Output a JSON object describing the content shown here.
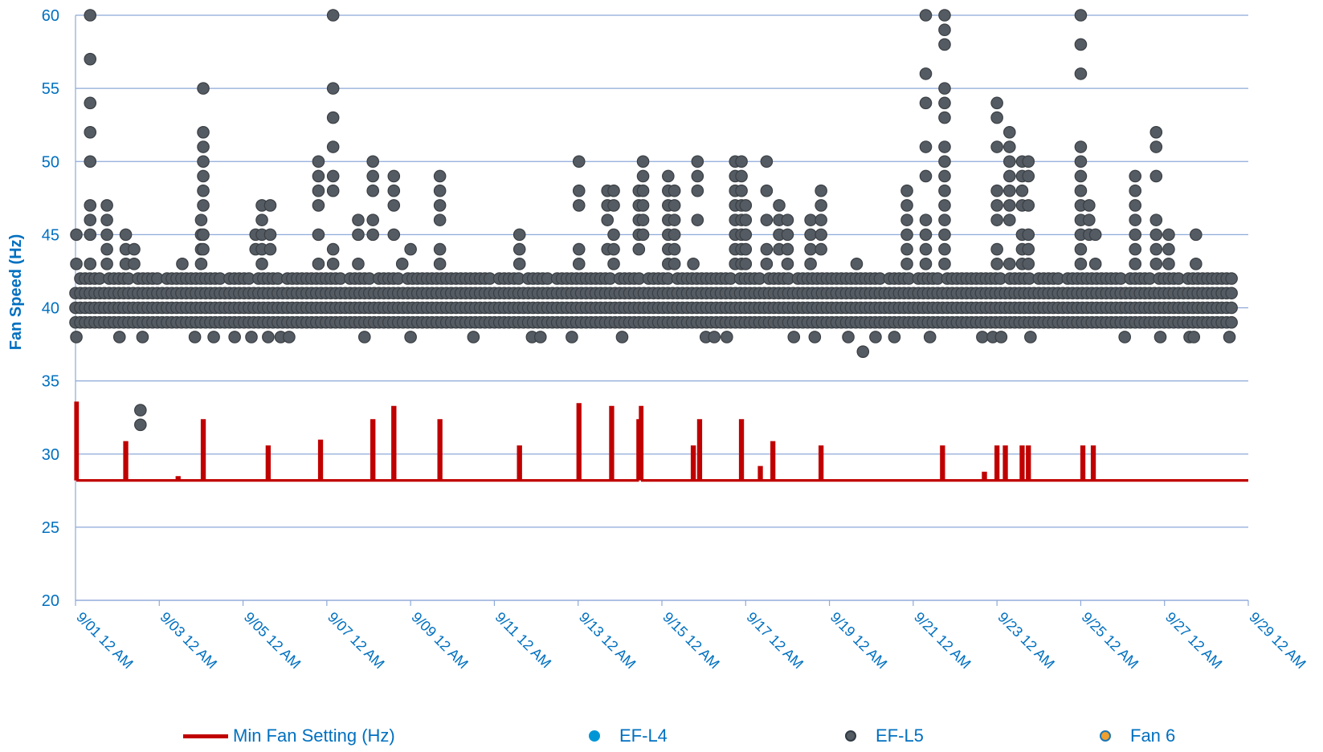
{
  "chart_data": {
    "type": "scatter",
    "title": "",
    "xlabel": "",
    "ylabel": "Fan Speed (Hz)",
    "ylim": [
      20,
      60
    ],
    "y_ticks": [
      "20",
      "25",
      "30",
      "35",
      "40",
      "45",
      "50",
      "55",
      "60"
    ],
    "x_range": [
      "2023-09-01 00:00",
      "2023-09-29 00:00"
    ],
    "x_ticks": [
      "9/01 12 AM",
      "9/03 12 AM",
      "9/05 12 AM",
      "9/07 12 AM",
      "9/09 12 AM",
      "9/11 12 AM",
      "9/13 12 AM",
      "9/15 12 AM",
      "9/17 12 AM",
      "9/19 12 AM",
      "9/21 12 AM",
      "9/23 12 AM",
      "9/25 12 AM",
      "9/27 12 AM",
      "9/29 12 AM"
    ],
    "grid": "horizontal",
    "legend_position": "bottom",
    "series": [
      {
        "name": "Min Fan Setting  (Hz)",
        "kind": "line",
        "color": "#C00000",
        "baseline": 28.2,
        "spikes": [
          {
            "day": 0.02,
            "value": 33.5
          },
          {
            "day": 1.2,
            "value": 30.8
          },
          {
            "day": 2.45,
            "value": 28.4
          },
          {
            "day": 3.05,
            "value": 32.3
          },
          {
            "day": 4.6,
            "value": 30.5
          },
          {
            "day": 5.85,
            "value": 30.9
          },
          {
            "day": 7.1,
            "value": 32.3
          },
          {
            "day": 7.6,
            "value": 33.2
          },
          {
            "day": 8.7,
            "value": 32.3
          },
          {
            "day": 10.6,
            "value": 30.5
          },
          {
            "day": 12.02,
            "value": 33.4
          },
          {
            "day": 12.8,
            "value": 33.2
          },
          {
            "day": 13.45,
            "value": 32.3
          },
          {
            "day": 13.5,
            "value": 33.2
          },
          {
            "day": 14.75,
            "value": 30.5
          },
          {
            "day": 14.9,
            "value": 32.3
          },
          {
            "day": 15.9,
            "value": 32.3
          },
          {
            "day": 16.35,
            "value": 29.1
          },
          {
            "day": 16.65,
            "value": 30.8
          },
          {
            "day": 17.8,
            "value": 30.5
          },
          {
            "day": 20.7,
            "value": 30.5
          },
          {
            "day": 21.7,
            "value": 28.7
          },
          {
            "day": 22.0,
            "value": 30.5
          },
          {
            "day": 22.2,
            "value": 30.5
          },
          {
            "day": 22.6,
            "value": 30.5
          },
          {
            "day": 22.75,
            "value": 30.5
          },
          {
            "day": 24.05,
            "value": 30.5
          },
          {
            "day": 24.3,
            "value": 30.5
          }
        ]
      },
      {
        "name": "EF-L4",
        "kind": "scatter",
        "color": "#0096D6",
        "points": []
      },
      {
        "name": "EF-L5",
        "kind": "scatter",
        "color": "#545B62",
        "stroke": "#3A3F44",
        "dense_band": {
          "from_day": 0,
          "to_day": 27.6,
          "values": [
            39,
            40,
            41,
            42
          ]
        },
        "columns": [
          {
            "day": 0.02,
            "values": [
              45,
              43,
              38
            ]
          },
          {
            "day": 0.35,
            "values": [
              60,
              57,
              54,
              52,
              50,
              47,
              46,
              45,
              43
            ]
          },
          {
            "day": 0.75,
            "values": [
              47,
              46,
              45,
              44,
              43
            ]
          },
          {
            "day": 1.05,
            "values": [
              38
            ]
          },
          {
            "day": 1.2,
            "values": [
              45,
              44,
              43
            ]
          },
          {
            "day": 1.4,
            "values": [
              44,
              43
            ]
          },
          {
            "day": 1.55,
            "values": [
              33,
              32
            ]
          },
          {
            "day": 1.6,
            "values": [
              38
            ]
          },
          {
            "day": 2.55,
            "values": [
              43
            ]
          },
          {
            "day": 2.85,
            "values": [
              38
            ]
          },
          {
            "day": 3.0,
            "values": [
              46,
              45,
              44,
              43
            ]
          },
          {
            "day": 3.05,
            "values": [
              55,
              52,
              51,
              50,
              49,
              48,
              47,
              45,
              44
            ]
          },
          {
            "day": 3.3,
            "values": [
              38
            ]
          },
          {
            "day": 3.8,
            "values": [
              38
            ]
          },
          {
            "day": 4.2,
            "values": [
              38
            ]
          },
          {
            "day": 4.3,
            "values": [
              45,
              44
            ]
          },
          {
            "day": 4.45,
            "values": [
              47,
              46,
              45,
              44,
              43
            ]
          },
          {
            "day": 4.6,
            "values": [
              38
            ]
          },
          {
            "day": 4.65,
            "values": [
              47,
              45,
              44
            ]
          },
          {
            "day": 4.9,
            "values": [
              38
            ]
          },
          {
            "day": 5.1,
            "values": [
              38
            ]
          },
          {
            "day": 5.8,
            "values": [
              50,
              49,
              48,
              47,
              45,
              43
            ]
          },
          {
            "day": 6.15,
            "values": [
              60,
              55,
              53,
              51,
              49,
              48,
              44,
              43
            ]
          },
          {
            "day": 6.75,
            "values": [
              46,
              45,
              43
            ]
          },
          {
            "day": 6.9,
            "values": [
              38
            ]
          },
          {
            "day": 7.1,
            "values": [
              50,
              49,
              48,
              46,
              45
            ]
          },
          {
            "day": 7.6,
            "values": [
              49,
              48,
              47,
              45
            ]
          },
          {
            "day": 7.8,
            "values": [
              43
            ]
          },
          {
            "day": 8.0,
            "values": [
              38,
              44
            ]
          },
          {
            "day": 8.7,
            "values": [
              49,
              48,
              47,
              46,
              44,
              43
            ]
          },
          {
            "day": 9.5,
            "values": [
              38
            ]
          },
          {
            "day": 10.6,
            "values": [
              45,
              44,
              43
            ]
          },
          {
            "day": 10.9,
            "values": [
              38
            ]
          },
          {
            "day": 11.1,
            "values": [
              38
            ]
          },
          {
            "day": 11.85,
            "values": [
              38
            ]
          },
          {
            "day": 12.02,
            "values": [
              50,
              48,
              47,
              44,
              43
            ]
          },
          {
            "day": 12.7,
            "values": [
              48,
              47,
              46,
              44
            ]
          },
          {
            "day": 12.85,
            "values": [
              48,
              47,
              45,
              44,
              43
            ]
          },
          {
            "day": 13.05,
            "values": [
              38
            ]
          },
          {
            "day": 13.45,
            "values": [
              48,
              47,
              46,
              45,
              44
            ]
          },
          {
            "day": 13.55,
            "values": [
              50,
              49,
              48,
              47,
              46,
              45
            ]
          },
          {
            "day": 14.15,
            "values": [
              49,
              48,
              47,
              46,
              45,
              44,
              43
            ]
          },
          {
            "day": 14.3,
            "values": [
              48,
              47,
              46,
              45,
              44,
              43
            ]
          },
          {
            "day": 14.75,
            "values": [
              43
            ]
          },
          {
            "day": 14.85,
            "values": [
              50,
              49,
              48,
              46
            ]
          },
          {
            "day": 15.05,
            "values": [
              38
            ]
          },
          {
            "day": 15.25,
            "values": [
              38
            ]
          },
          {
            "day": 15.55,
            "values": [
              38
            ]
          },
          {
            "day": 15.75,
            "values": [
              50,
              49,
              48,
              47,
              46,
              45,
              44,
              43
            ]
          },
          {
            "day": 15.9,
            "values": [
              50,
              49,
              48,
              47,
              46,
              45,
              44,
              43
            ]
          },
          {
            "day": 16.0,
            "values": [
              47,
              46,
              45,
              44,
              43
            ]
          },
          {
            "day": 16.5,
            "values": [
              50,
              48,
              46,
              44,
              43
            ]
          },
          {
            "day": 16.8,
            "values": [
              47,
              46,
              45,
              44
            ]
          },
          {
            "day": 17.0,
            "values": [
              46,
              45,
              44,
              43
            ]
          },
          {
            "day": 17.15,
            "values": [
              38
            ]
          },
          {
            "day": 17.55,
            "values": [
              46,
              45,
              44,
              43
            ]
          },
          {
            "day": 17.65,
            "values": [
              38
            ]
          },
          {
            "day": 17.8,
            "values": [
              48,
              47,
              46,
              45,
              44
            ]
          },
          {
            "day": 18.45,
            "values": [
              38
            ]
          },
          {
            "day": 18.65,
            "values": [
              43
            ]
          },
          {
            "day": 18.8,
            "values": [
              37
            ]
          },
          {
            "day": 19.1,
            "values": [
              38
            ]
          },
          {
            "day": 19.55,
            "values": [
              38
            ]
          },
          {
            "day": 19.85,
            "values": [
              48,
              47,
              46,
              45,
              44,
              43
            ]
          },
          {
            "day": 20.3,
            "values": [
              60,
              56,
              54,
              51,
              49,
              46,
              45,
              44,
              43
            ]
          },
          {
            "day": 20.4,
            "values": [
              38
            ]
          },
          {
            "day": 20.75,
            "values": [
              60,
              59,
              58,
              55,
              54,
              53,
              51,
              50,
              49,
              48,
              47,
              46,
              45,
              44,
              43
            ]
          },
          {
            "day": 21.65,
            "values": [
              38
            ]
          },
          {
            "day": 21.9,
            "values": [
              38
            ]
          },
          {
            "day": 22.0,
            "values": [
              54,
              53,
              51,
              48,
              47,
              46,
              44,
              43
            ]
          },
          {
            "day": 22.1,
            "values": [
              38
            ]
          },
          {
            "day": 22.3,
            "values": [
              52,
              51,
              50,
              49,
              48,
              47,
              46,
              43
            ]
          },
          {
            "day": 22.6,
            "values": [
              50,
              49,
              48,
              47,
              45,
              44,
              43
            ]
          },
          {
            "day": 22.75,
            "values": [
              50,
              49,
              47,
              45,
              44,
              43
            ]
          },
          {
            "day": 22.8,
            "values": [
              38
            ]
          },
          {
            "day": 24.0,
            "values": [
              60,
              58,
              56,
              51,
              50,
              49,
              48,
              47,
              46,
              45,
              44,
              43
            ]
          },
          {
            "day": 24.2,
            "values": [
              47,
              46,
              45
            ]
          },
          {
            "day": 24.35,
            "values": [
              45,
              43
            ]
          },
          {
            "day": 25.05,
            "values": [
              38
            ]
          },
          {
            "day": 25.3,
            "values": [
              49,
              48,
              47,
              46,
              45,
              44,
              43
            ]
          },
          {
            "day": 25.8,
            "values": [
              52,
              51,
              49,
              46,
              45,
              44,
              43
            ]
          },
          {
            "day": 25.9,
            "values": [
              38
            ]
          },
          {
            "day": 26.1,
            "values": [
              45,
              44,
              43
            ]
          },
          {
            "day": 26.6,
            "values": [
              38
            ]
          },
          {
            "day": 26.7,
            "values": [
              38
            ]
          },
          {
            "day": 26.75,
            "values": [
              45,
              43
            ]
          },
          {
            "day": 27.55,
            "values": [
              38
            ]
          }
        ]
      },
      {
        "name": "Fan 6",
        "kind": "scatter",
        "color": "#F0A030",
        "points": []
      }
    ]
  },
  "legend": [
    {
      "label": "Min Fan Setting  (Hz)",
      "marker": "line",
      "color": "#C00000"
    },
    {
      "label": "EF-L4",
      "marker": "dot",
      "color": "#0096D6"
    },
    {
      "label": "EF-L5",
      "marker": "dot",
      "color": "#545B62",
      "stroke": "#3A3F44"
    },
    {
      "label": "Fan 6",
      "marker": "dot",
      "color": "#F0A030"
    }
  ]
}
